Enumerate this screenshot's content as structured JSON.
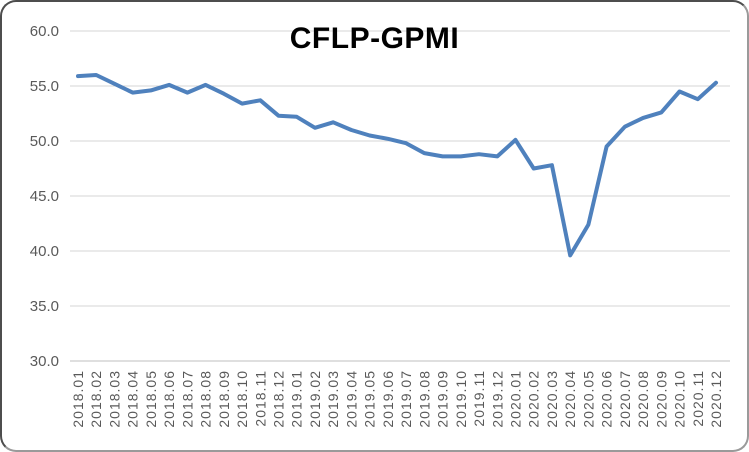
{
  "window": {
    "background": "#ffffff",
    "frame_border_color": "#4d4d4d"
  },
  "chart_data": {
    "type": "line",
    "title": "CFLP-GPMI",
    "xlabel": "",
    "ylabel": "",
    "legend": "none",
    "grid": "horizontal",
    "gridline_color": "#d6d6d6",
    "axis_line_color": "#bfbfbf",
    "tick_label_color": "#595959",
    "title_color": "#000000",
    "line_color": "#4f81bd",
    "line_width": 4,
    "ylim": [
      30.0,
      60.0
    ],
    "y_ticks": [
      60.0,
      55.0,
      50.0,
      45.0,
      40.0,
      35.0,
      30.0
    ],
    "y_tick_labels": [
      "60.0",
      "55.0",
      "50.0",
      "45.0",
      "40.0",
      "35.0",
      "30.0"
    ],
    "categories": [
      "2018.01",
      "2018.02",
      "2018.03",
      "2018.04",
      "2018.05",
      "2018.06",
      "2018.07",
      "2018.08",
      "2018.09",
      "2018.10",
      "2018.11",
      "2018.12",
      "2019.01",
      "2019.02",
      "2019.03",
      "2019.04",
      "2019.05",
      "2019.06",
      "2019.07",
      "2019.08",
      "2019.09",
      "2019.10",
      "2019.11",
      "2019.12",
      "2020.01",
      "2020.02",
      "2020.03",
      "2020.04",
      "2020.05",
      "2020.06",
      "2020.07",
      "2020.08",
      "2020.09",
      "2020.10",
      "2020.11",
      "2020.12"
    ],
    "series": [
      {
        "name": "CFLP-GPMI",
        "values": [
          55.9,
          56.0,
          55.2,
          54.4,
          54.6,
          55.1,
          54.4,
          55.1,
          54.3,
          53.4,
          53.7,
          52.3,
          52.2,
          51.2,
          51.7,
          51.0,
          50.5,
          50.2,
          49.8,
          48.9,
          48.6,
          48.6,
          48.8,
          48.6,
          50.1,
          47.5,
          47.8,
          39.6,
          42.4,
          49.5,
          51.3,
          52.1,
          52.6,
          54.5,
          53.8,
          55.3
        ]
      }
    ]
  }
}
